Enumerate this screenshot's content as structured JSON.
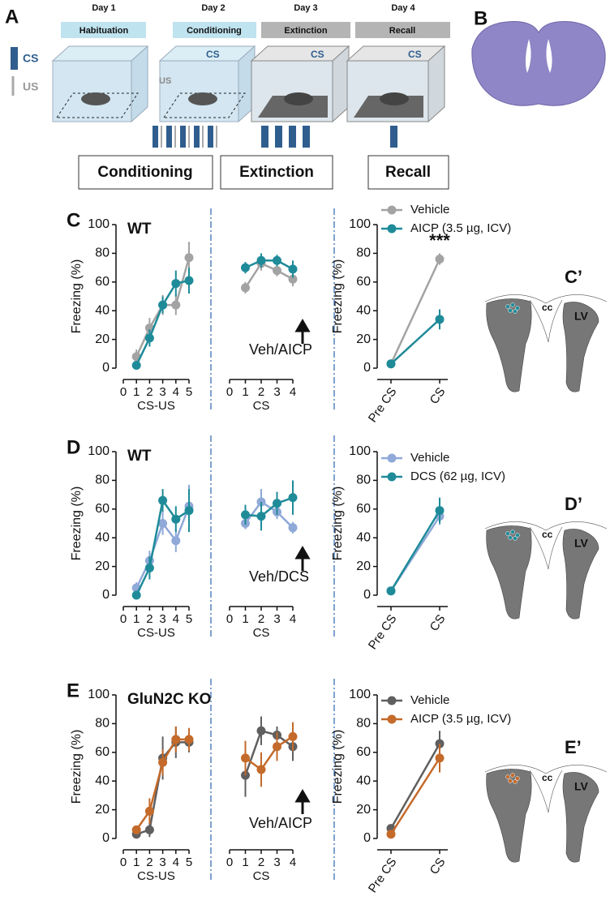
{
  "panel_a": {
    "label": "A",
    "days": [
      {
        "day": "Day 1",
        "phase": "Habituation"
      },
      {
        "day": "Day 2",
        "phase": "Conditioning"
      },
      {
        "day": "Day 3",
        "phase": "Extinction"
      },
      {
        "day": "Day 4",
        "phase": "Recall"
      }
    ],
    "legend": {
      "cs": "CS",
      "us": "US"
    },
    "us_label": "US",
    "cs_labels": [
      "CS",
      "CS",
      "CS"
    ],
    "sessions": [
      "Conditioning",
      "Extinction",
      "Recall"
    ]
  },
  "panel_b": {
    "label": "B"
  },
  "rows": [
    {
      "label": "C",
      "genotype": "WT",
      "arrow_label": "Veh/AICP",
      "inset_label": "C’",
      "inset_texts": [
        "cc",
        "LV"
      ]
    },
    {
      "label": "D",
      "genotype": "WT",
      "arrow_label": "Veh/DCS",
      "inset_label": "D’",
      "inset_texts": [
        "cc",
        "LV"
      ]
    },
    {
      "label": "E",
      "genotype": "GluN2C KO",
      "arrow_label": "Veh/AICP",
      "inset_label": "E’",
      "inset_texts": [
        "cc",
        "LV"
      ]
    }
  ],
  "chart_data": [
    {
      "type": "line",
      "ylabel": "Freezing (%)",
      "xlabel": "CS-US",
      "x": [
        1,
        2,
        3,
        4,
        5
      ],
      "xlim": [
        0,
        5
      ],
      "xticks": [
        0,
        1,
        2,
        3,
        4,
        5
      ],
      "ylim": [
        0,
        100
      ],
      "yticks": [
        0,
        20,
        40,
        60,
        80,
        100
      ],
      "series": [
        {
          "color": "#a3a3a3",
          "values": [
            8,
            28,
            44,
            44,
            77
          ],
          "errors": [
            5,
            7,
            7,
            7,
            11
          ]
        },
        {
          "color": "#1f8b99",
          "values": [
            2,
            21,
            44,
            59,
            61
          ],
          "errors": [
            2,
            6,
            6,
            9,
            9
          ]
        }
      ]
    },
    {
      "type": "line",
      "xlabel": "CS",
      "x": [
        1,
        2,
        3,
        4
      ],
      "xlim": [
        0,
        4
      ],
      "xticks": [
        0,
        1,
        2,
        3,
        4
      ],
      "ylim": [
        0,
        100
      ],
      "series": [
        {
          "color": "#a3a3a3",
          "values": [
            56,
            73,
            68,
            62
          ],
          "errors": [
            4,
            5,
            4,
            5
          ]
        },
        {
          "color": "#1f8b99",
          "values": [
            70,
            75,
            75,
            69
          ],
          "errors": [
            4,
            5,
            4,
            6
          ]
        }
      ]
    },
    {
      "type": "line",
      "ylabel": "Freezing (%)",
      "categories": [
        "Pre CS",
        "CS"
      ],
      "ylim": [
        0,
        100
      ],
      "yticks": [
        0,
        20,
        40,
        60,
        80,
        100
      ],
      "annotation": "***",
      "series": [
        {
          "name": "Vehicle",
          "color": "#a3a3a3",
          "values": [
            3,
            76
          ],
          "errors": [
            1,
            4
          ]
        },
        {
          "name": "AICP (3.5 µg, ICV)",
          "color": "#1f8b99",
          "values": [
            3,
            34
          ],
          "errors": [
            1,
            7
          ]
        }
      ]
    },
    {
      "type": "line",
      "ylabel": "Freezing (%)",
      "xlabel": "CS-US",
      "x": [
        1,
        2,
        3,
        4,
        5
      ],
      "xlim": [
        0,
        5
      ],
      "xticks": [
        0,
        1,
        2,
        3,
        4,
        5
      ],
      "ylim": [
        0,
        100
      ],
      "yticks": [
        0,
        20,
        40,
        60,
        80,
        100
      ],
      "series": [
        {
          "color": "#8fa9d8",
          "values": [
            5,
            24,
            50,
            38,
            62
          ],
          "errors": [
            4,
            7,
            8,
            8,
            15
          ]
        },
        {
          "color": "#1f8b99",
          "values": [
            0,
            19,
            66,
            53,
            59
          ],
          "errors": [
            1,
            8,
            8,
            9,
            15
          ]
        }
      ]
    },
    {
      "type": "line",
      "xlabel": "CS",
      "x": [
        1,
        2,
        3,
        4
      ],
      "xlim": [
        0,
        4
      ],
      "xticks": [
        0,
        1,
        2,
        3,
        4
      ],
      "ylim": [
        0,
        100
      ],
      "series": [
        {
          "color": "#8fa9d8",
          "values": [
            50,
            65,
            58,
            47
          ],
          "errors": [
            4,
            9,
            5,
            4
          ]
        },
        {
          "color": "#1f8b99",
          "values": [
            56,
            55,
            64,
            68
          ],
          "errors": [
            7,
            10,
            8,
            12
          ]
        }
      ]
    },
    {
      "type": "line",
      "ylabel": "Freezing (%)",
      "categories": [
        "Pre CS",
        "CS"
      ],
      "ylim": [
        0,
        100
      ],
      "yticks": [
        0,
        20,
        40,
        60,
        80,
        100
      ],
      "series": [
        {
          "name": "Vehicle",
          "color": "#8fa9d8",
          "values": [
            3,
            55
          ],
          "errors": [
            1,
            6
          ]
        },
        {
          "name": "DCS (62 µg, ICV)",
          "color": "#1f8b99",
          "values": [
            3,
            59
          ],
          "errors": [
            1,
            9
          ]
        }
      ]
    },
    {
      "type": "line",
      "ylabel": "Freezing (%)",
      "xlabel": "CS-US",
      "x": [
        1,
        2,
        3,
        4,
        5
      ],
      "xlim": [
        0,
        5
      ],
      "xticks": [
        0,
        1,
        2,
        3,
        4,
        5
      ],
      "ylim": [
        0,
        100
      ],
      "yticks": [
        0,
        20,
        40,
        60,
        80,
        100
      ],
      "series": [
        {
          "color": "#5f5f5f",
          "values": [
            3,
            6,
            56,
            67,
            67
          ],
          "errors": [
            2,
            5,
            15,
            11,
            7
          ]
        },
        {
          "color": "#c46a2a",
          "values": [
            6,
            19,
            53,
            69,
            69
          ],
          "errors": [
            3,
            9,
            9,
            9,
            8
          ]
        }
      ]
    },
    {
      "type": "line",
      "xlabel": "CS",
      "x": [
        1,
        2,
        3,
        4
      ],
      "xlim": [
        0,
        4
      ],
      "xticks": [
        0,
        1,
        2,
        3,
        4
      ],
      "ylim": [
        0,
        100
      ],
      "series": [
        {
          "color": "#5f5f5f",
          "values": [
            44,
            75,
            72,
            64
          ],
          "errors": [
            15,
            10,
            6,
            10
          ]
        },
        {
          "color": "#c46a2a",
          "values": [
            56,
            48,
            64,
            71
          ],
          "errors": [
            12,
            12,
            10,
            10
          ]
        }
      ]
    },
    {
      "type": "line",
      "ylabel": "Freezing (%)",
      "categories": [
        "Pre CS",
        "CS"
      ],
      "ylim": [
        0,
        100
      ],
      "yticks": [
        0,
        20,
        40,
        60,
        80,
        100
      ],
      "series": [
        {
          "name": "Vehicle",
          "color": "#5f5f5f",
          "values": [
            7,
            66
          ],
          "errors": [
            2,
            9
          ]
        },
        {
          "name": "AICP (3.5 µg, ICV)",
          "color": "#c46a2a",
          "values": [
            3,
            56
          ],
          "errors": [
            1,
            10
          ]
        }
      ]
    }
  ]
}
